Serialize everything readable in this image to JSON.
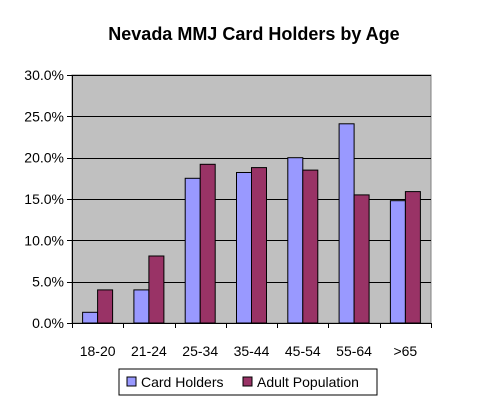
{
  "chart_data": {
    "type": "bar",
    "title": "Nevada MMJ Card Holders by Age",
    "xlabel": "",
    "ylabel": "",
    "categories": [
      "18-20",
      "21-24",
      "25-34",
      "35-44",
      "45-54",
      "55-64",
      ">65"
    ],
    "series": [
      {
        "name": "Card Holders",
        "color": "#9999FF",
        "values": [
          1.3,
          4.0,
          17.5,
          18.2,
          20.0,
          24.1,
          14.8
        ]
      },
      {
        "name": "Adult Population",
        "color": "#993366",
        "values": [
          4.0,
          8.1,
          19.2,
          18.8,
          18.5,
          15.5,
          15.9
        ]
      }
    ],
    "ylim": [
      0,
      30
    ],
    "yticks": [
      0,
      5,
      10,
      15,
      20,
      25,
      30
    ],
    "ytick_labels": [
      "0.0%",
      "5.0%",
      "10.0%",
      "15.0%",
      "20.0%",
      "25.0%",
      "30.0%"
    ],
    "grid": true,
    "plot_background": "#C0C0C0",
    "legend_position": "bottom"
  }
}
